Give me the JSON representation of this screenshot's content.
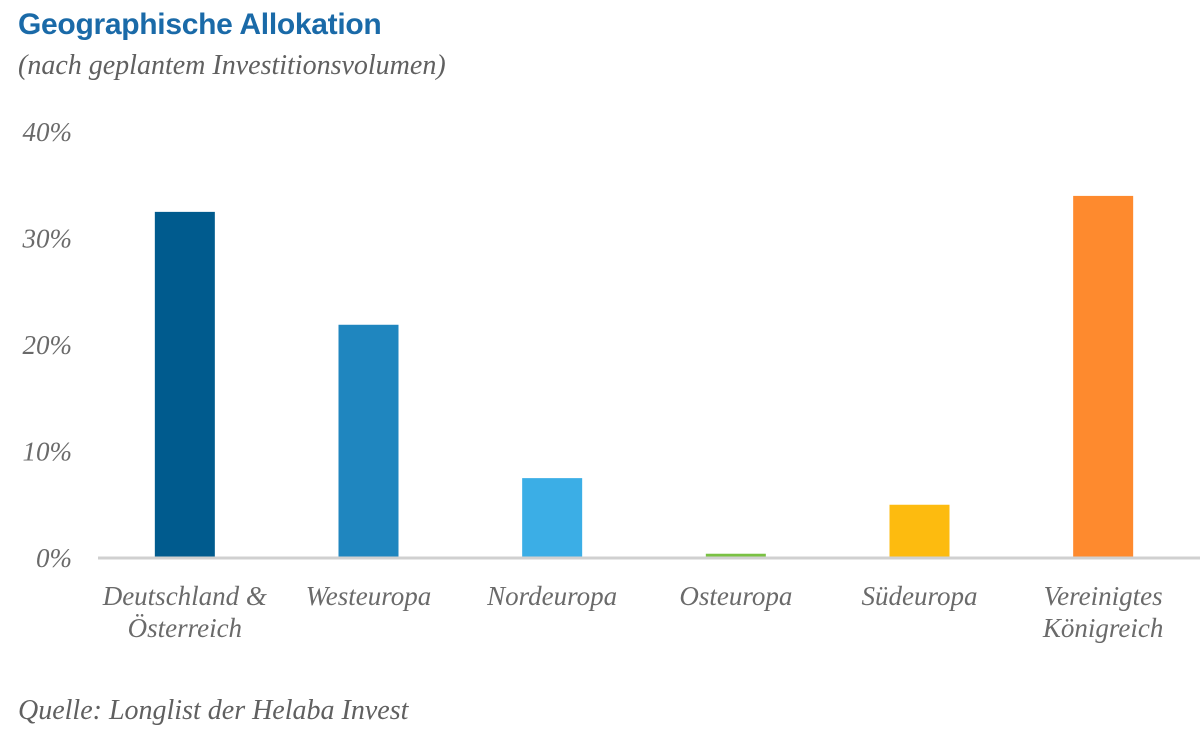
{
  "header": {
    "title": "Geographische Allokation",
    "subtitle": "(nach geplantem Investitionsvolumen)"
  },
  "footer": {
    "source": "Quelle: Longlist der Helaba Invest"
  },
  "chart_data": {
    "type": "bar",
    "title": "Geographische Allokation",
    "subtitle": "(nach geplantem Investitionsvolumen)",
    "xlabel": "",
    "ylabel": "",
    "categories": [
      [
        "Deutschland &",
        "Österreich"
      ],
      [
        "Westeuropa"
      ],
      [
        "Nordeuropa"
      ],
      [
        "Osteuropa"
      ],
      [
        "Südeuropa"
      ],
      [
        "Vereinigtes",
        "Königreich"
      ]
    ],
    "values": [
      32.5,
      21.9,
      7.5,
      0.4,
      5.0,
      34.0
    ],
    "colors": [
      "#005b8e",
      "#1f86bf",
      "#3baee6",
      "#7ac143",
      "#fdbb0f",
      "#fe8a2e"
    ],
    "ylim": [
      0,
      40
    ],
    "yticks": [
      0,
      10,
      20,
      30,
      40
    ],
    "ytick_labels": [
      "0%",
      "10%",
      "20%",
      "30%",
      "40%"
    ],
    "grid": false,
    "axis_color": "#d0d0d0"
  }
}
